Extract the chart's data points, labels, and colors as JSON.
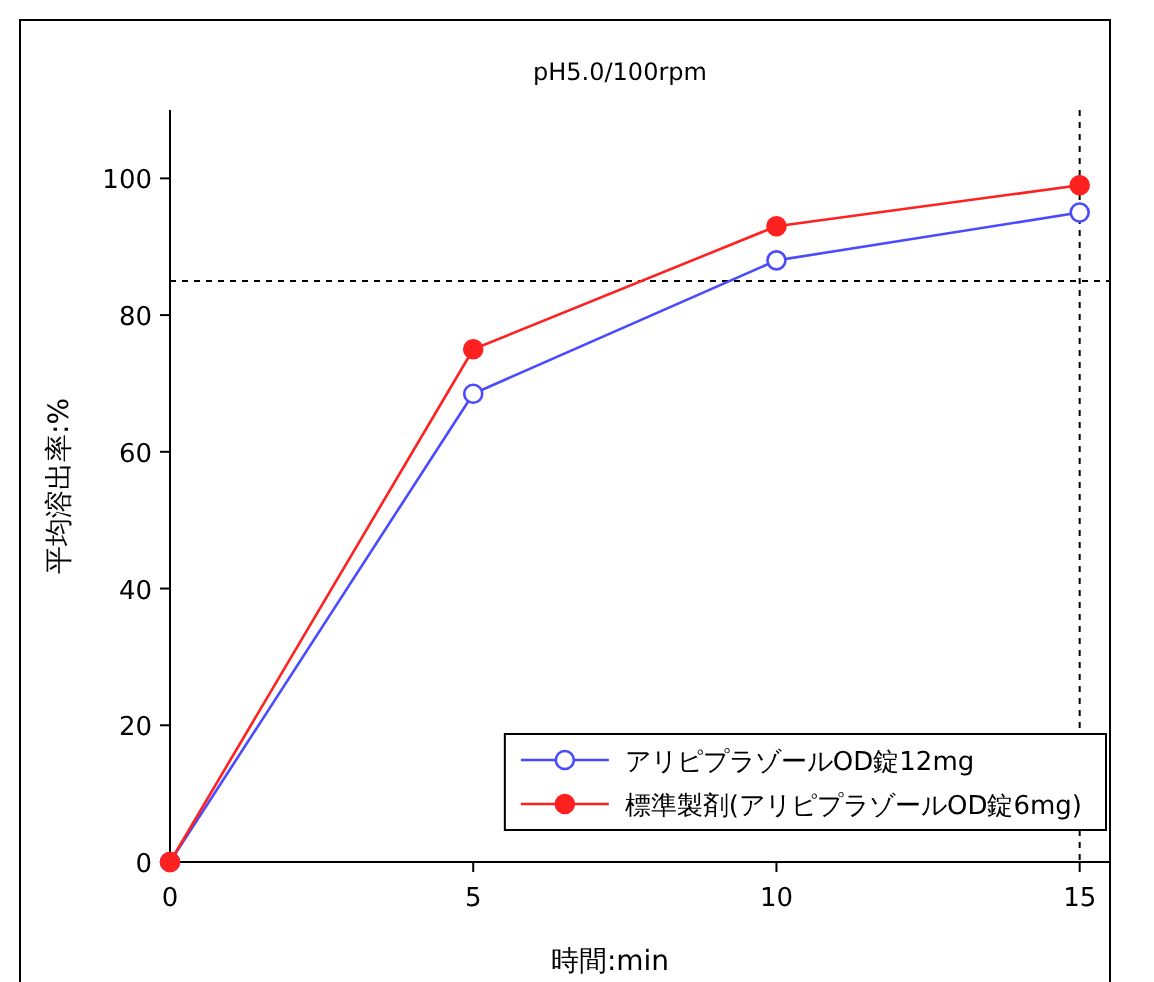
{
  "chart_data": {
    "type": "line",
    "title": "pH5.0/100rpm",
    "xlabel": "時間:min",
    "ylabel": "平均溶出率:%",
    "x": [
      0,
      5,
      10,
      15
    ],
    "series": [
      {
        "name": "アリピプラゾールOD錠12mg",
        "color": "#4a4aff",
        "values": [
          0,
          68.5,
          88,
          95
        ],
        "marker": "circle"
      },
      {
        "name": "標準製剤(アリピプラゾールOD錠6mg)",
        "color": "#ff2020",
        "values": [
          0,
          75,
          93,
          99
        ],
        "marker": "circle"
      }
    ],
    "xlim": [
      0,
      15.5
    ],
    "ylim": [
      0,
      110
    ],
    "xticks": [
      0,
      5,
      10,
      15
    ],
    "yticks": [
      0,
      20,
      40,
      60,
      80,
      100
    ],
    "ref_lines": [
      {
        "axis": "y",
        "value": 85,
        "line_style": "dashed",
        "color": "#000000"
      },
      {
        "axis": "x",
        "value": 15,
        "line_style": "dashed",
        "color": "#000000"
      }
    ],
    "grid": false,
    "legend": "bottom right",
    "line_style": "solid"
  }
}
